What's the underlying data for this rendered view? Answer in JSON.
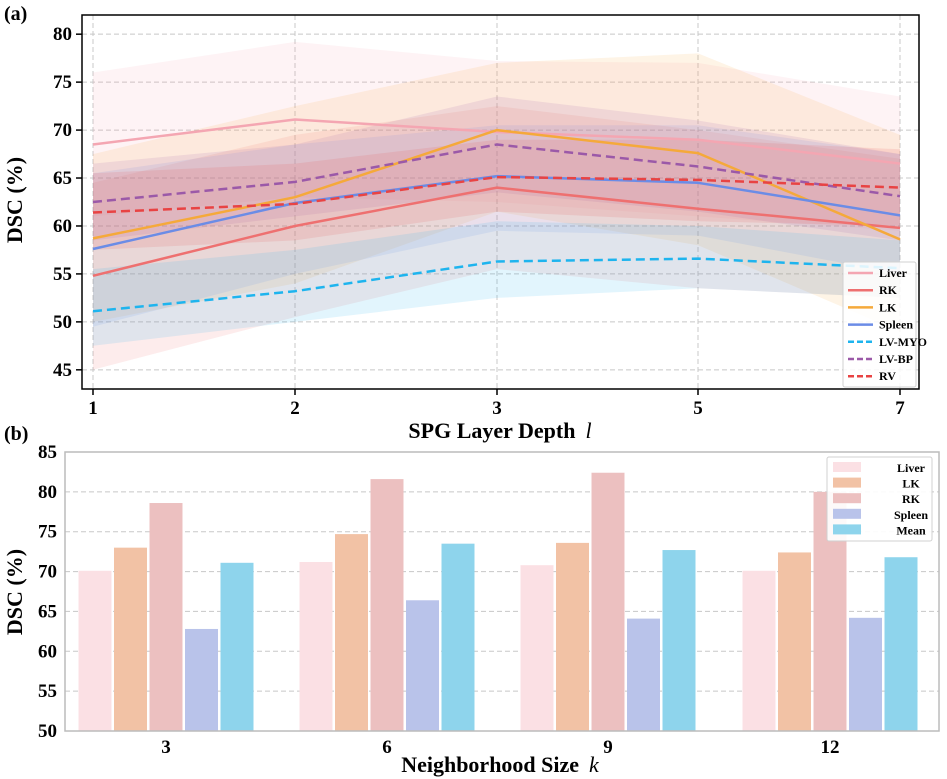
{
  "chart_data": [
    {
      "panel": "(a)",
      "type": "line",
      "xlabel": "SPG Layer Depth",
      "xlabel_var": "l",
      "ylabel": "DSC (%)",
      "categories": [
        "1",
        "2",
        "3",
        "5",
        "7"
      ],
      "ylim": [
        43,
        82
      ],
      "yticks": [
        45,
        50,
        55,
        60,
        65,
        70,
        75,
        80
      ],
      "grid": true,
      "legend_position": "lower-right",
      "series": [
        {
          "name": "Liver",
          "color": "#f4a6b2",
          "dash": "solid",
          "values": [
            68.5,
            71.1,
            69.8,
            69.0,
            66.5
          ],
          "band_low": [
            61.0,
            63.0,
            62.5,
            61.0,
            59.5
          ],
          "band_high": [
            76.0,
            79.2,
            77.2,
            77.0,
            73.5
          ]
        },
        {
          "name": "RK",
          "color": "#ee7070",
          "dash": "solid",
          "values": [
            54.8,
            60.0,
            64.0,
            61.8,
            59.8
          ],
          "band_low": [
            45.0,
            50.5,
            55.5,
            53.5,
            52.5
          ],
          "band_high": [
            64.5,
            69.5,
            72.5,
            70.0,
            67.0
          ]
        },
        {
          "name": "LK",
          "color": "#f5a93a",
          "dash": "solid",
          "values": [
            58.7,
            63.0,
            70.0,
            67.6,
            58.6
          ],
          "band_low": [
            50.0,
            54.0,
            61.5,
            58.0,
            49.0
          ],
          "band_high": [
            67.5,
            72.5,
            77.0,
            78.0,
            69.5
          ]
        },
        {
          "name": "Spleen",
          "color": "#6b8ce6",
          "dash": "solid",
          "values": [
            57.6,
            62.4,
            65.2,
            64.5,
            61.1
          ],
          "band_low": [
            49.5,
            55.0,
            59.5,
            59.0,
            55.0
          ],
          "band_high": [
            65.5,
            68.5,
            70.5,
            70.5,
            67.5
          ]
        },
        {
          "name": "LV-MYO",
          "color": "#1eb4ee",
          "dash": "dashed",
          "values": [
            51.1,
            53.2,
            56.3,
            56.6,
            55.6
          ],
          "band_low": [
            47.5,
            50.0,
            52.5,
            53.5,
            52.5
          ],
          "band_high": [
            55.5,
            57.5,
            60.5,
            60.0,
            58.5
          ]
        },
        {
          "name": "LV-BP",
          "color": "#9b59a8",
          "dash": "dashed",
          "values": [
            62.5,
            64.6,
            68.5,
            66.2,
            63.1
          ],
          "band_low": [
            58.5,
            61.0,
            63.5,
            61.5,
            58.5
          ],
          "band_high": [
            66.5,
            68.5,
            73.5,
            71.0,
            67.5
          ]
        },
        {
          "name": "RV",
          "color": "#e84343",
          "dash": "dashed",
          "values": [
            61.4,
            62.3,
            65.1,
            64.8,
            64.0
          ],
          "band_low": [
            57.5,
            58.5,
            61.5,
            60.5,
            60.0
          ],
          "band_high": [
            65.5,
            66.5,
            69.0,
            69.0,
            68.0
          ]
        }
      ]
    },
    {
      "panel": "(b)",
      "type": "bar",
      "xlabel": "Neighborhood Size",
      "xlabel_var": "k",
      "ylabel": "DSC (%)",
      "categories": [
        "3",
        "6",
        "9",
        "12"
      ],
      "ylim": [
        50,
        85
      ],
      "yticks": [
        50,
        55,
        60,
        65,
        70,
        75,
        80,
        85
      ],
      "grid": true,
      "legend_position": "top-right",
      "series": [
        {
          "name": "Liver",
          "color": "#fbe0e4",
          "values": [
            70.1,
            71.2,
            70.8,
            70.1
          ]
        },
        {
          "name": "LK",
          "color": "#f2c2a5",
          "values": [
            73.0,
            74.7,
            73.6,
            72.4
          ]
        },
        {
          "name": "RK",
          "color": "#ecc0c0",
          "values": [
            78.6,
            81.6,
            82.4,
            80.0
          ]
        },
        {
          "name": "Spleen",
          "color": "#b9c3ea",
          "values": [
            62.8,
            66.4,
            64.1,
            64.2
          ]
        },
        {
          "name": "Mean",
          "color": "#8ed4ec",
          "values": [
            71.1,
            73.5,
            72.7,
            71.8
          ]
        }
      ]
    }
  ]
}
